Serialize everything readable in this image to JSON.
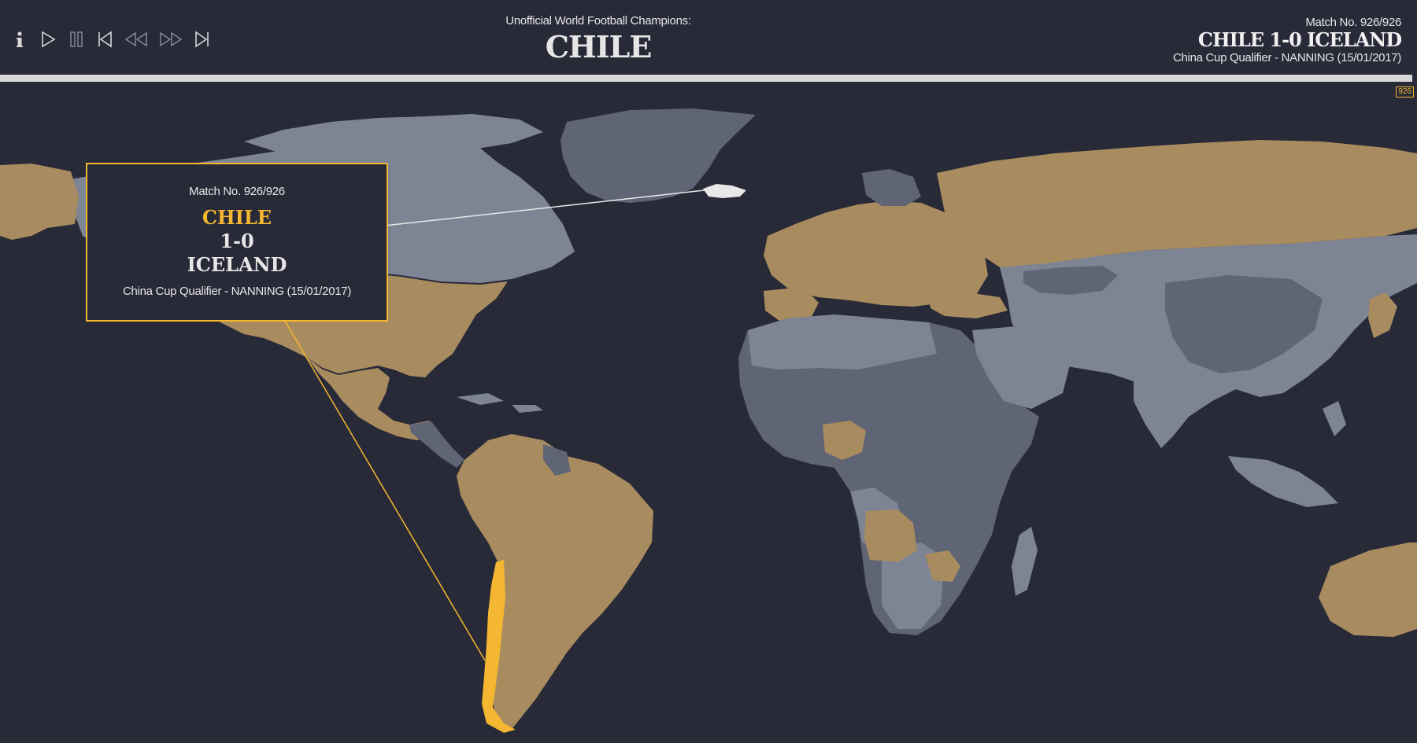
{
  "controls": {
    "info_icon": "info-icon",
    "play_icon": "play-icon",
    "pause_icon": "pause-icon",
    "first_icon": "skip-to-start-icon",
    "rewind_icon": "rewind-icon",
    "forward_icon": "fast-forward-icon",
    "last_icon": "skip-to-end-icon"
  },
  "header": {
    "subtitle": "Unofficial World Football Champions:",
    "champion": "CHILE"
  },
  "match_info": {
    "match_no": "Match No. 926/926",
    "score_line": "CHILE 1-0 ICELAND",
    "detail": "China Cup Qualifier - NANNING (15/01/2017)"
  },
  "progress": {
    "current": 926,
    "total": 926,
    "marker_label": "926"
  },
  "callout": {
    "match_no": "Match No. 926/926",
    "winner": "CHILE",
    "score": "1-0",
    "loser": "ICELAND",
    "detail": "China Cup Qualifier - NANNING (15/01/2017)"
  },
  "colors": {
    "background": "#282a38",
    "former_champion": "#a88b5f",
    "current_champion": "#f5b731",
    "never_champion": "#5f6575",
    "land_light": "#7d8494",
    "opponent_highlight": "#e8e8e8"
  }
}
